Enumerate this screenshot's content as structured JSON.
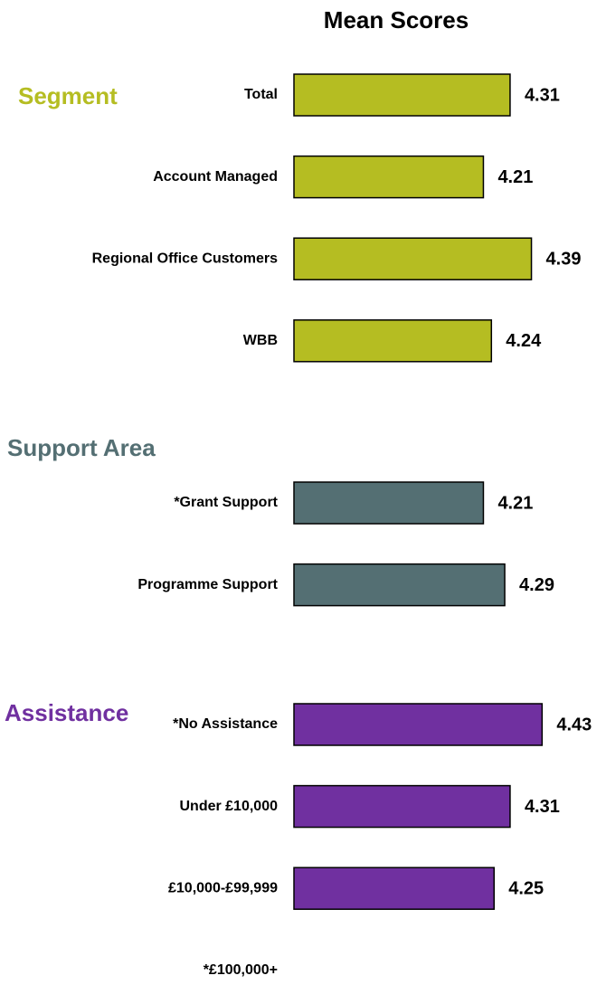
{
  "chart_data": {
    "type": "bar",
    "orientation": "horizontal",
    "title": "Mean Scores",
    "xlim": [
      3.5,
      4.5
    ],
    "groups": [
      {
        "name": "Segment",
        "color": "#b5bd22",
        "categories": [
          "Total",
          "Account Managed",
          "Regional Office Customers",
          "WBB"
        ],
        "values": [
          4.31,
          4.21,
          4.39,
          4.24
        ]
      },
      {
        "name": "Support Area",
        "color": "#546f73",
        "categories": [
          "*Grant Support",
          "Programme Support"
        ],
        "values": [
          4.21,
          4.29
        ]
      },
      {
        "name": "Assistance",
        "color": "#7030a0",
        "categories": [
          "*No Assistance",
          "Under £10,000",
          "£10,000-£99,999",
          "*£100,000+"
        ],
        "values": [
          4.43,
          4.31,
          4.25,
          null
        ]
      }
    ]
  }
}
